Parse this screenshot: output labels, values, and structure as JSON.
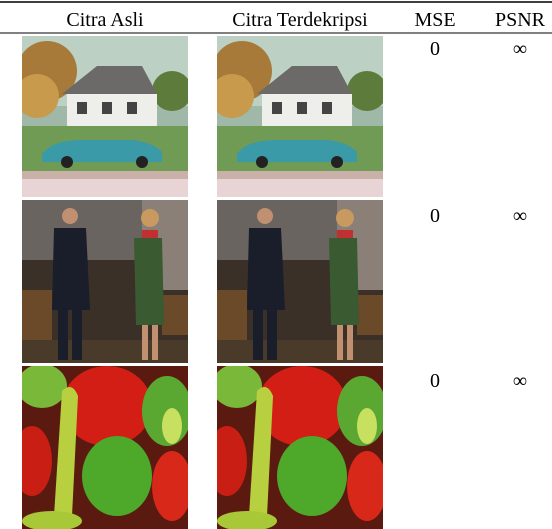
{
  "table": {
    "headers": [
      "Citra Asli",
      "Citra Terdekripsi",
      "MSE",
      "PSNR"
    ],
    "rows": [
      [
        0,
        "∞"
      ],
      [
        0,
        "∞"
      ],
      [
        0,
        "∞"
      ]
    ]
  }
}
